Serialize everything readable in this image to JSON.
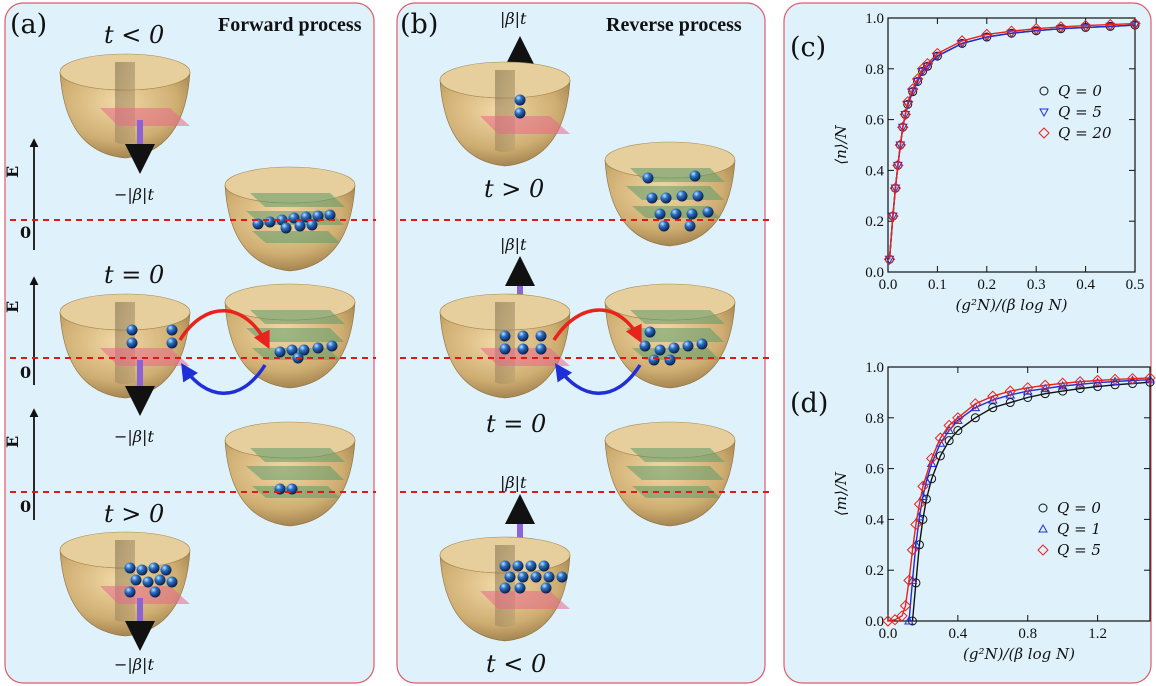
{
  "panels": {
    "a": {
      "label": "(a)",
      "title": "Forward process",
      "t_top": "t < 0",
      "t_mid": "t = 0",
      "t_bot": "t > 0",
      "field": "−|β|t"
    },
    "b": {
      "label": "(b)",
      "title": "Reverse process",
      "t_top": "t > 0",
      "t_mid": "t = 0",
      "t_bot": "t < 0",
      "field": "|β|t"
    },
    "c": {
      "label": "(c)"
    },
    "d": {
      "label": "(d)"
    }
  },
  "energy_axis": {
    "label": "E",
    "zero": "0"
  },
  "colors": {
    "panel_bg": "#dff1fb",
    "panel_border": "#e05a6a",
    "bowl": "#c9a66b",
    "arrow_red": "#e8231c",
    "arrow_blue": "#1f2ed6",
    "field_arrow": "#8b63d4",
    "dashed": "#e01818",
    "series_black": "#111111",
    "series_blue": "#1f2ed6",
    "series_red": "#e8231c"
  },
  "chart_data": [
    {
      "type": "scatter",
      "panel": "c",
      "xlabel": "(g²N)/(β log N)",
      "ylabel": "⟨n⟩/N",
      "xlim": [
        0,
        0.5
      ],
      "ylim": [
        0,
        1
      ],
      "xticks": [
        "0.0",
        "0.1",
        "0.2",
        "0.3",
        "0.4",
        "0.5"
      ],
      "yticks": [
        "0.0",
        "0.2",
        "0.4",
        "0.6",
        "0.8",
        "1.0"
      ],
      "legend_position": "right",
      "series": [
        {
          "name": "Q = 0",
          "marker": "circle",
          "color": "#111111",
          "x": [
            0.003,
            0.01,
            0.015,
            0.02,
            0.025,
            0.03,
            0.035,
            0.04,
            0.05,
            0.06,
            0.07,
            0.08,
            0.1,
            0.15,
            0.2,
            0.25,
            0.3,
            0.35,
            0.4,
            0.45,
            0.5
          ],
          "y": [
            0.05,
            0.22,
            0.33,
            0.42,
            0.5,
            0.57,
            0.62,
            0.66,
            0.71,
            0.75,
            0.79,
            0.81,
            0.85,
            0.9,
            0.925,
            0.94,
            0.95,
            0.958,
            0.963,
            0.967,
            0.972
          ]
        },
        {
          "name": "Q = 5",
          "marker": "triangle-down",
          "color": "#1f2ed6",
          "x": [
            0.003,
            0.01,
            0.015,
            0.02,
            0.025,
            0.03,
            0.035,
            0.04,
            0.05,
            0.06,
            0.07,
            0.08,
            0.1,
            0.15,
            0.2,
            0.25,
            0.3,
            0.35,
            0.4,
            0.45,
            0.5
          ],
          "y": [
            0.05,
            0.22,
            0.33,
            0.42,
            0.5,
            0.57,
            0.62,
            0.66,
            0.71,
            0.75,
            0.79,
            0.81,
            0.85,
            0.9,
            0.925,
            0.94,
            0.95,
            0.958,
            0.963,
            0.967,
            0.972
          ]
        },
        {
          "name": "Q = 20",
          "marker": "diamond",
          "color": "#e8231c",
          "x": [
            0.003,
            0.01,
            0.015,
            0.02,
            0.025,
            0.03,
            0.035,
            0.04,
            0.05,
            0.06,
            0.07,
            0.08,
            0.1,
            0.15,
            0.2,
            0.25,
            0.3,
            0.35,
            0.4,
            0.45,
            0.5
          ],
          "y": [
            0.05,
            0.22,
            0.33,
            0.42,
            0.5,
            0.57,
            0.62,
            0.67,
            0.72,
            0.76,
            0.8,
            0.82,
            0.86,
            0.91,
            0.935,
            0.948,
            0.958,
            0.965,
            0.97,
            0.974,
            0.978
          ]
        }
      ]
    },
    {
      "type": "scatter",
      "panel": "d",
      "xlabel": "(g²N)/(β log N)",
      "ylabel": "⟨m⟩/N",
      "xlim": [
        0,
        1.5
      ],
      "ylim": [
        0,
        1
      ],
      "xticks": [
        "0.0",
        "0.4",
        "0.8",
        "1.2"
      ],
      "yticks": [
        "0.0",
        "0.2",
        "0.4",
        "0.6",
        "0.8",
        "1.0"
      ],
      "legend_position": "bottom-right",
      "series": [
        {
          "name": "Q = 0",
          "marker": "circle",
          "color": "#111111",
          "x": [
            0.14,
            0.16,
            0.18,
            0.2,
            0.22,
            0.25,
            0.3,
            0.35,
            0.4,
            0.5,
            0.6,
            0.7,
            0.8,
            0.9,
            1.0,
            1.1,
            1.2,
            1.3,
            1.4,
            1.5
          ],
          "y": [
            0.0,
            0.15,
            0.3,
            0.4,
            0.48,
            0.56,
            0.65,
            0.71,
            0.75,
            0.8,
            0.84,
            0.86,
            0.88,
            0.895,
            0.905,
            0.915,
            0.923,
            0.93,
            0.935,
            0.94
          ]
        },
        {
          "name": "Q = 1",
          "marker": "triangle-up",
          "color": "#1f2ed6",
          "x": [
            0.12,
            0.14,
            0.16,
            0.18,
            0.2,
            0.22,
            0.25,
            0.3,
            0.35,
            0.4,
            0.5,
            0.6,
            0.7,
            0.8,
            0.9,
            1.0,
            1.1,
            1.2,
            1.3,
            1.4,
            1.5
          ],
          "y": [
            0.0,
            0.16,
            0.3,
            0.41,
            0.49,
            0.55,
            0.62,
            0.7,
            0.75,
            0.79,
            0.84,
            0.87,
            0.89,
            0.905,
            0.915,
            0.925,
            0.932,
            0.938,
            0.943,
            0.947,
            0.95
          ]
        },
        {
          "name": "Q = 5",
          "marker": "diamond",
          "color": "#e8231c",
          "x": [
            0.0,
            0.04,
            0.08,
            0.1,
            0.12,
            0.14,
            0.16,
            0.18,
            0.2,
            0.25,
            0.3,
            0.35,
            0.4,
            0.5,
            0.6,
            0.7,
            0.8,
            0.9,
            1.0,
            1.1,
            1.2,
            1.3,
            1.4,
            1.5
          ],
          "y": [
            0.0,
            0.005,
            0.02,
            0.06,
            0.16,
            0.28,
            0.38,
            0.46,
            0.53,
            0.64,
            0.72,
            0.77,
            0.8,
            0.855,
            0.885,
            0.905,
            0.918,
            0.928,
            0.936,
            0.942,
            0.947,
            0.951,
            0.954,
            0.957
          ]
        }
      ]
    }
  ]
}
